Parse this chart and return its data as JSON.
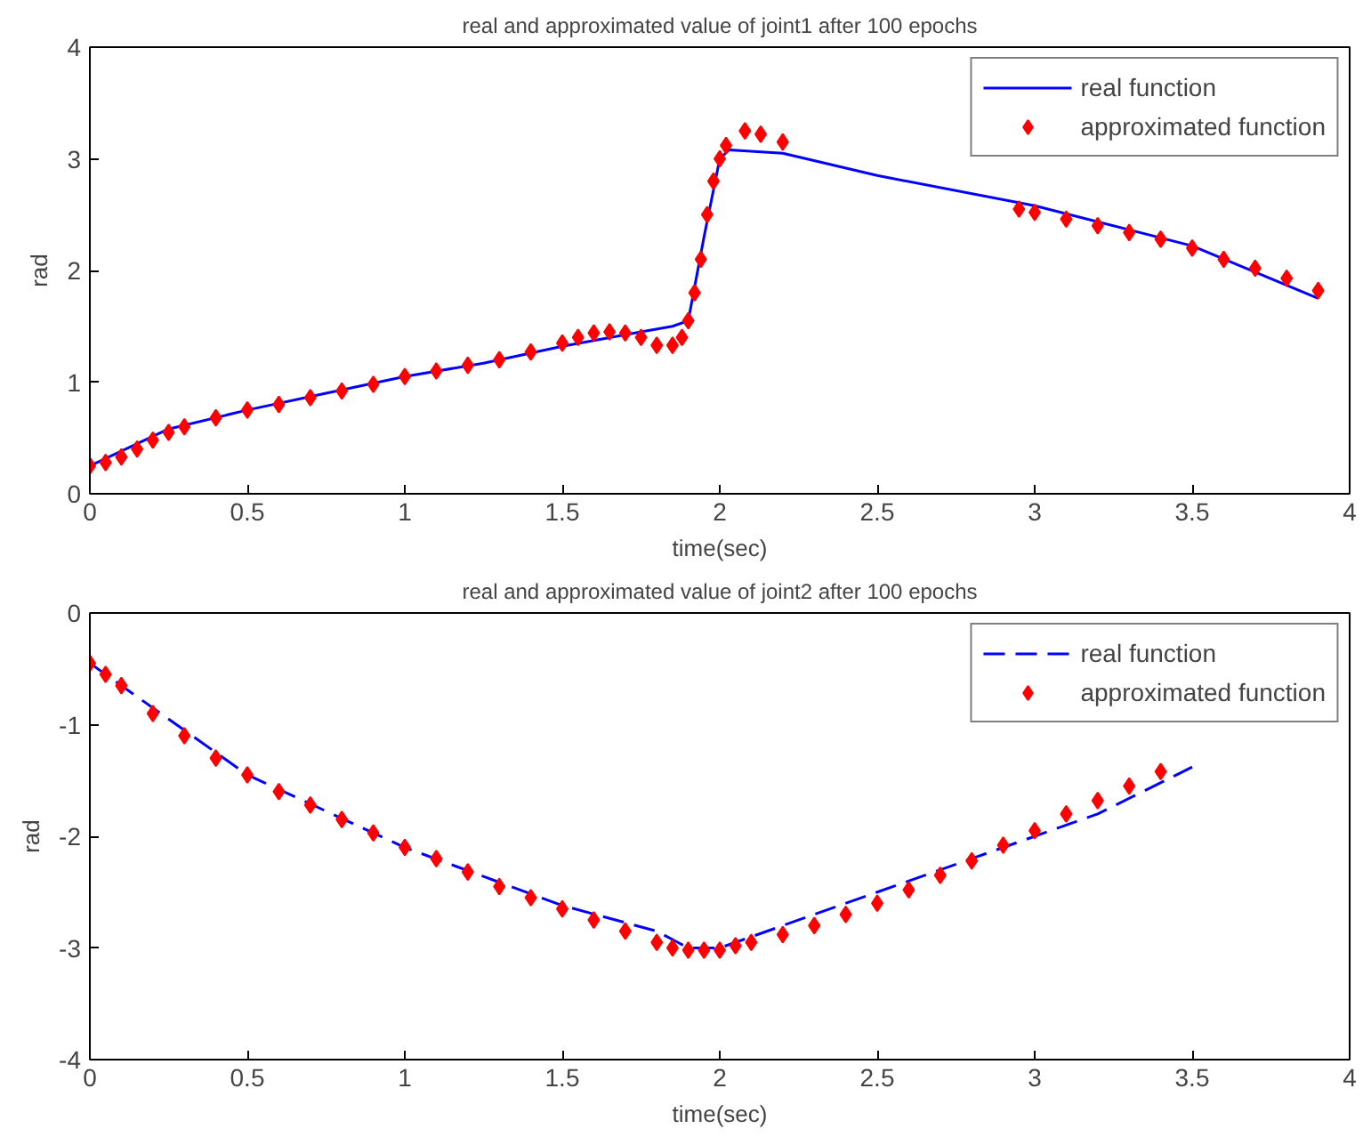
{
  "chart_data": [
    {
      "type": "line",
      "title": "real and approximated value of joint1 after 100 epochs",
      "xlabel": "time(sec)",
      "ylabel": "rad",
      "xlim": [
        0,
        4
      ],
      "ylim": [
        0,
        4
      ],
      "xticks": [
        0,
        0.5,
        1,
        1.5,
        2,
        2.5,
        3,
        3.5,
        4
      ],
      "yticks": [
        0,
        1,
        2,
        3,
        4
      ],
      "grid": false,
      "legend": "top right",
      "series": [
        {
          "name": "real function",
          "color": "#0000ff",
          "line_style": "solid",
          "x": [
            0,
            0.25,
            0.5,
            0.75,
            1,
            1.25,
            1.5,
            1.75,
            1.85,
            1.9,
            1.95,
            2.0,
            2.03,
            2.2,
            2.5,
            3,
            3.5,
            3.9
          ],
          "values": [
            0.25,
            0.58,
            0.75,
            0.9,
            1.05,
            1.17,
            1.32,
            1.45,
            1.5,
            1.55,
            2.3,
            3.0,
            3.08,
            3.05,
            2.85,
            2.58,
            2.22,
            1.75
          ]
        },
        {
          "name": "approximated function",
          "type": "scatter",
          "color": "#ff0000",
          "marker": "diamond",
          "x": [
            0,
            0.05,
            0.1,
            0.15,
            0.2,
            0.25,
            0.3,
            0.4,
            0.5,
            0.6,
            0.7,
            0.8,
            0.9,
            1.0,
            1.1,
            1.2,
            1.3,
            1.4,
            1.5,
            1.55,
            1.6,
            1.65,
            1.7,
            1.75,
            1.8,
            1.85,
            1.88,
            1.9,
            1.92,
            1.94,
            1.96,
            1.98,
            2.0,
            2.02,
            2.08,
            2.13,
            2.2,
            2.95,
            3.0,
            3.1,
            3.2,
            3.3,
            3.4,
            3.5,
            3.6,
            3.7,
            3.8,
            3.9
          ],
          "values": [
            0.25,
            0.28,
            0.33,
            0.4,
            0.48,
            0.55,
            0.6,
            0.68,
            0.75,
            0.8,
            0.86,
            0.92,
            0.98,
            1.05,
            1.1,
            1.15,
            1.2,
            1.27,
            1.35,
            1.4,
            1.44,
            1.45,
            1.44,
            1.4,
            1.33,
            1.33,
            1.4,
            1.55,
            1.8,
            2.1,
            2.5,
            2.8,
            3.0,
            3.12,
            3.25,
            3.22,
            3.15,
            2.55,
            2.52,
            2.46,
            2.4,
            2.34,
            2.28,
            2.2,
            2.1,
            2.02,
            1.93,
            1.82
          ]
        }
      ]
    },
    {
      "type": "line",
      "title": "real and approximated value of joint2 after 100 epochs",
      "xlabel": "time(sec)",
      "ylabel": "rad",
      "xlim": [
        0,
        4
      ],
      "ylim": [
        -4,
        0
      ],
      "xticks": [
        0,
        0.5,
        1,
        1.5,
        2,
        2.5,
        3,
        3.5,
        4
      ],
      "yticks": [
        -4,
        -3,
        -2,
        -1,
        0
      ],
      "grid": false,
      "legend": "top right",
      "series": [
        {
          "name": "real function",
          "color": "#0000ff",
          "line_style": "dashed",
          "x": [
            0,
            0.5,
            1,
            1.5,
            1.8,
            1.9,
            2.0,
            2.2,
            2.5,
            2.8,
            3.0,
            3.2,
            3.5
          ],
          "values": [
            -0.45,
            -1.45,
            -2.1,
            -2.62,
            -2.85,
            -3.0,
            -3.0,
            -2.8,
            -2.5,
            -2.2,
            -2.0,
            -1.8,
            -1.38
          ]
        },
        {
          "name": "approximated function",
          "type": "scatter",
          "color": "#ff0000",
          "marker": "diamond",
          "x": [
            0,
            0.05,
            0.1,
            0.2,
            0.3,
            0.4,
            0.5,
            0.6,
            0.7,
            0.8,
            0.9,
            1.0,
            1.1,
            1.2,
            1.3,
            1.4,
            1.5,
            1.6,
            1.7,
            1.8,
            1.85,
            1.9,
            1.95,
            2.0,
            2.05,
            2.1,
            2.2,
            2.3,
            2.4,
            2.5,
            2.6,
            2.7,
            2.8,
            2.9,
            3.0,
            3.1,
            3.2,
            3.3,
            3.4
          ],
          "values": [
            -0.45,
            -0.55,
            -0.65,
            -0.9,
            -1.1,
            -1.3,
            -1.45,
            -1.6,
            -1.72,
            -1.85,
            -1.97,
            -2.1,
            -2.2,
            -2.32,
            -2.45,
            -2.55,
            -2.65,
            -2.75,
            -2.85,
            -2.95,
            -3.0,
            -3.02,
            -3.02,
            -3.02,
            -2.98,
            -2.95,
            -2.88,
            -2.8,
            -2.7,
            -2.6,
            -2.48,
            -2.35,
            -2.22,
            -2.08,
            -1.95,
            -1.8,
            -1.68,
            -1.55,
            -1.42
          ]
        }
      ]
    }
  ]
}
